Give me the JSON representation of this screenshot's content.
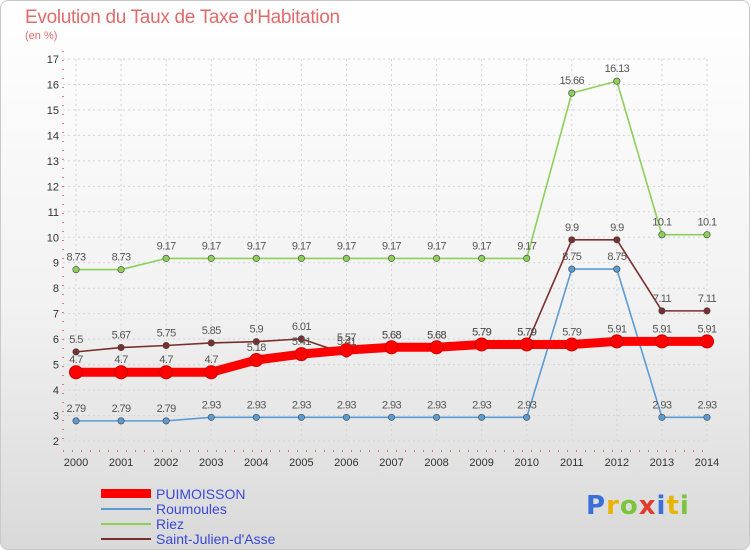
{
  "title": "Evolution du Taux de Taxe d'Habitation",
  "subtitle": "(en %)",
  "watermark": {
    "letters": [
      "P",
      "r",
      "o",
      "x",
      "i",
      "t",
      "i"
    ],
    "colors": [
      "#3a6fd8",
      "#e8b400",
      "#7cc43a",
      "#e03c2c",
      "#3a6fd8",
      "#e8b400",
      "#7cc43a"
    ]
  },
  "chart_data": {
    "type": "line",
    "title": "Evolution du Taux de Taxe d'Habitation",
    "ylabel": "(en %)",
    "xlabel": "",
    "ylim": [
      2,
      17
    ],
    "yticks": [
      2,
      3,
      4,
      5,
      6,
      7,
      8,
      9,
      10,
      11,
      12,
      13,
      14,
      15,
      16,
      17
    ],
    "grid": true,
    "legend_position": "bottom-left",
    "x": [
      2000,
      2001,
      2002,
      2003,
      2004,
      2005,
      2006,
      2007,
      2008,
      2009,
      2010,
      2011,
      2012,
      2013,
      2014
    ],
    "series": [
      {
        "name": "PUIMOISSON",
        "color": "#ff0000",
        "values": [
          4.7,
          4.7,
          4.7,
          4.7,
          5.18,
          5.41,
          5.57,
          5.68,
          5.68,
          5.79,
          5.79,
          5.79,
          5.91,
          5.91,
          5.91
        ],
        "labels": [
          "4.7",
          "4.7",
          "4.7",
          "4.7",
          "5.18",
          "5.41",
          "5.57",
          "5.68",
          "5.68",
          "5.79",
          "5.79",
          "5.79",
          "5.91",
          "5.91",
          "5.91"
        ]
      },
      {
        "name": "Roumoules",
        "color": "#5b9bd5",
        "values": [
          2.79,
          2.79,
          2.79,
          2.93,
          2.93,
          2.93,
          2.93,
          2.93,
          2.93,
          2.93,
          2.93,
          8.75,
          8.75,
          2.93,
          2.93
        ],
        "labels": [
          "2.79",
          "2.79",
          "2.79",
          "2.93",
          "2.93",
          "2.93",
          "2.93",
          "2.93",
          "2.93",
          "2.93",
          "2.93",
          "8.75",
          "8.75",
          "2.93",
          "2.93"
        ]
      },
      {
        "name": "Riez",
        "color": "#8cd05a",
        "values": [
          8.73,
          8.73,
          9.17,
          9.17,
          9.17,
          9.17,
          9.17,
          9.17,
          9.17,
          9.17,
          9.17,
          15.66,
          16.13,
          10.1,
          10.1
        ],
        "labels": [
          "8.73",
          "8.73",
          "9.17",
          "9.17",
          "9.17",
          "9.17",
          "9.17",
          "9.17",
          "9.17",
          "9.17",
          "9.17",
          "15.66",
          "16.13",
          "10.1",
          "10.1"
        ]
      },
      {
        "name": "Saint-Julien-d'Asse",
        "color": "#7a2f2f",
        "values": [
          5.5,
          5.67,
          5.75,
          5.85,
          5.9,
          6.01,
          5.41,
          5.68,
          5.68,
          5.79,
          5.79,
          9.9,
          9.9,
          7.11,
          7.11
        ],
        "labels": [
          "5.5",
          "5.67",
          "5.75",
          "5.85",
          "5.9",
          "6.01",
          "5.41",
          "5.68",
          "5.68",
          "5.79",
          "5.79",
          "9.9",
          "9.9",
          "7.11",
          "7.11"
        ]
      }
    ]
  }
}
